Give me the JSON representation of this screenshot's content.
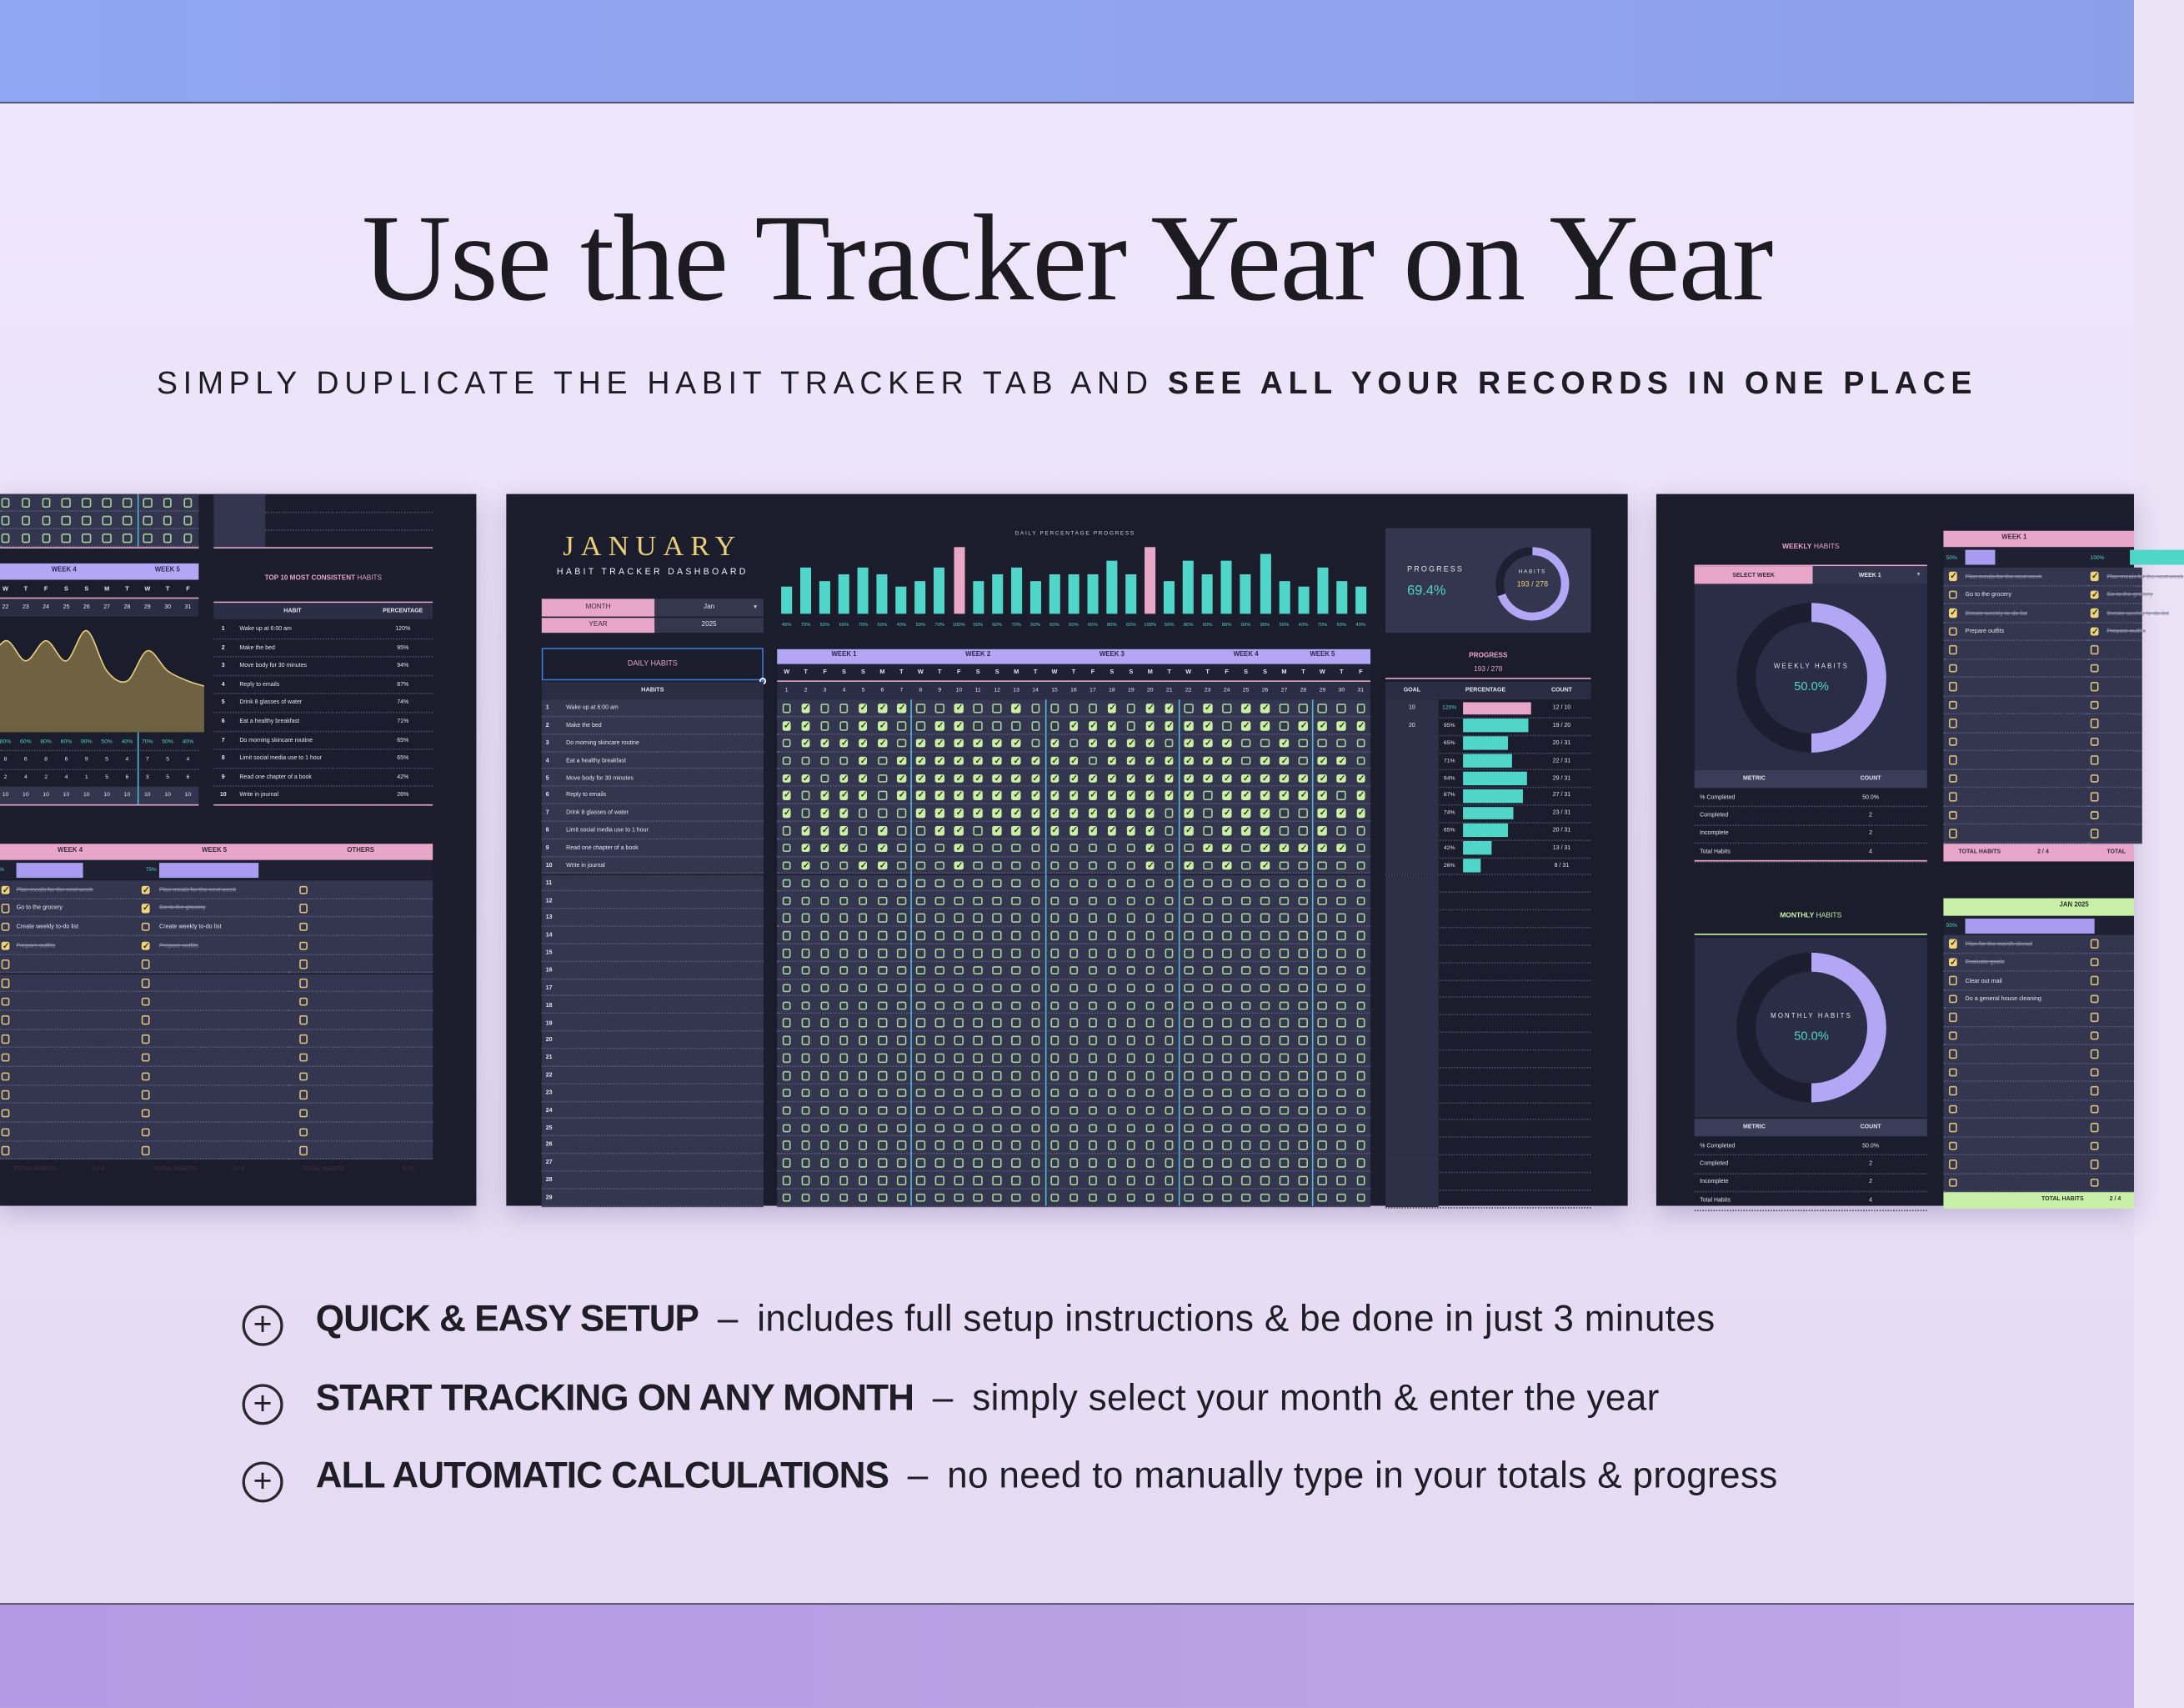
{
  "hero": {
    "title": "Use the Tracker Year on Year",
    "subtitle_regular": "SIMPLY DUPLICATE THE HABIT TRACKER TAB AND",
    "subtitle_bold": "SEE ALL YOUR RECORDS IN ONE PLACE"
  },
  "features": [
    {
      "icon": "plus-circle-icon",
      "icon_glyph": "+",
      "title": "QUICK & EASY SETUP",
      "separator": "–",
      "desc": "includes full setup instructions & be done in just 3 minutes"
    },
    {
      "icon": "plus-circle-icon",
      "icon_glyph": "+",
      "title": "START TRACKING ON ANY MONTH",
      "separator": "–",
      "desc": "simply select your month & enter the year"
    },
    {
      "icon": "plus-circle-icon",
      "icon_glyph": "+",
      "title": "ALL AUTOMATIC CALCULATIONS",
      "separator": "–",
      "desc": "no need to manually type in your totals & progress"
    }
  ],
  "colors": {
    "panel_bg": "#1b1c2c",
    "row_bg": "#34364f",
    "lavender": "#b3a6f5",
    "pink": "#e8a6c8",
    "teal": "#4fd6c8",
    "gold": "#e9cf7b",
    "green_header": "#c8f0a8",
    "check_green": "#c9efa4",
    "check_gold": "#f0d47a"
  },
  "dashboard": {
    "month_title": "JANUARY",
    "subtitle": "HABIT TRACKER DASHBOARD",
    "month_label": "MONTH",
    "month_value": "Jan",
    "year_label": "YEAR",
    "year_value": "2025",
    "daily_habits_label": "DAILY HABITS",
    "habits_header": "HABITS",
    "chart_title": "DAILY PERCENTAGE PROGRESS",
    "daily_percent": [
      40,
      70,
      50,
      60,
      70,
      60,
      40,
      50,
      70,
      100,
      50,
      60,
      70,
      50,
      60,
      60,
      60,
      80,
      60,
      100,
      50,
      80,
      60,
      80,
      60,
      90,
      50,
      40,
      70,
      50,
      40
    ],
    "daily_percent_labels": [
      "40%",
      "70%",
      "50%",
      "60%",
      "70%",
      "60%",
      "40%",
      "50%",
      "70%",
      "100%",
      "50%",
      "60%",
      "70%",
      "50%",
      "60%",
      "60%",
      "60%",
      "80%",
      "60%",
      "100%",
      "50%",
      "80%",
      "60%",
      "80%",
      "60%",
      "90%",
      "50%",
      "40%",
      "70%",
      "50%",
      "40%"
    ],
    "weeks": [
      "WEEK 1",
      "WEEK 2",
      "WEEK 3",
      "WEEK 4",
      "WEEK 5"
    ],
    "day_letters": [
      "W",
      "T",
      "F",
      "S",
      "S",
      "M",
      "T",
      "W",
      "T",
      "F",
      "S",
      "S",
      "M",
      "T",
      "W",
      "T",
      "F",
      "S",
      "S",
      "M",
      "T",
      "W",
      "T",
      "F",
      "S",
      "S",
      "M",
      "T",
      "W",
      "T",
      "F"
    ],
    "days": [
      "1",
      "2",
      "3",
      "4",
      "5",
      "6",
      "7",
      "8",
      "9",
      "10",
      "11",
      "12",
      "13",
      "14",
      "15",
      "16",
      "17",
      "18",
      "19",
      "20",
      "21",
      "22",
      "23",
      "24",
      "25",
      "26",
      "27",
      "28",
      "29",
      "30",
      "31"
    ],
    "habits": [
      {
        "num": "1",
        "name": "Wake up at 6:00 am",
        "checks": "0100111001001000010110101100000",
        "goal": "10",
        "percent": "120%",
        "percent_value": 120,
        "count": "12 / 10"
      },
      {
        "num": "2",
        "name": "Make the bed",
        "checks": "1100110011000001110111101101111",
        "goal": "20",
        "percent": "95%",
        "percent_value": 95,
        "count": "19 / 20"
      },
      {
        "num": "3",
        "name": "Do morning skincare routine",
        "checks": "0111110111111010111101110010000",
        "goal": "",
        "percent": "65%",
        "percent_value": 65,
        "count": "20 / 31"
      },
      {
        "num": "4",
        "name": "Eat a healthy breakfast",
        "checks": "0000101111111111011111110110110",
        "goal": "",
        "percent": "71%",
        "percent_value": 71,
        "count": "22 / 31"
      },
      {
        "num": "5",
        "name": "Move body for 30 minutes",
        "checks": "1101101111111111111111111111111",
        "goal": "",
        "percent": "94%",
        "percent_value": 94,
        "count": "29 / 31"
      },
      {
        "num": "6",
        "name": "Reply to emails",
        "checks": "1011101111111111111111011111101",
        "goal": "",
        "percent": "87%",
        "percent_value": 87,
        "count": "27 / 31"
      },
      {
        "num": "7",
        "name": "Drink 8 glasses of water",
        "checks": "1011000111111111111101011100111",
        "goal": "",
        "percent": "74%",
        "percent_value": 74,
        "count": "23 / 31"
      },
      {
        "num": "8",
        "name": "Limit social media use to 1 hour",
        "checks": "0111010011011111111101011100100",
        "goal": "",
        "percent": "65%",
        "percent_value": 65,
        "count": "20 / 31"
      },
      {
        "num": "9",
        "name": "Read one chapter of a book",
        "checks": "0111010001000000000100110111110",
        "goal": "",
        "percent": "42%",
        "percent_value": 42,
        "count": "13 / 31"
      },
      {
        "num": "10",
        "name": "Write in journal",
        "checks": "0100110001000000000101010100000",
        "goal": "",
        "percent": "26%",
        "percent_value": 26,
        "count": "8 / 31"
      },
      {
        "num": "11"
      },
      {
        "num": "12"
      },
      {
        "num": "13"
      },
      {
        "num": "14"
      },
      {
        "num": "15"
      },
      {
        "num": "16"
      },
      {
        "num": "17"
      },
      {
        "num": "18"
      },
      {
        "num": "19"
      },
      {
        "num": "20"
      },
      {
        "num": "21"
      },
      {
        "num": "22"
      },
      {
        "num": "23"
      },
      {
        "num": "24"
      },
      {
        "num": "25"
      },
      {
        "num": "26"
      },
      {
        "num": "27"
      },
      {
        "num": "28"
      },
      {
        "num": "29"
      }
    ],
    "progress_box": {
      "label": "PROGRESS",
      "value": "69.4%",
      "donut_label": "HABITS",
      "donut_value": "193 / 278",
      "fraction": 0.694
    },
    "progress_table": {
      "title": "PROGRESS",
      "subtitle": "193 / 278",
      "headers": [
        "GOAL",
        "PERCENTAGE",
        "COUNT"
      ]
    }
  },
  "left_panel": {
    "weeks": [
      "WEEK 4",
      "WEEK 5"
    ],
    "day_letters": [
      "W",
      "T",
      "F",
      "S",
      "S",
      "M",
      "T",
      "W",
      "T",
      "F"
    ],
    "days": [
      "22",
      "23",
      "24",
      "25",
      "26",
      "27",
      "28",
      "29",
      "30",
      "31"
    ],
    "percent_values": [
      80,
      60,
      80,
      60,
      90,
      50,
      40,
      70,
      50,
      40
    ],
    "percent_labels": [
      "80%",
      "60%",
      "80%",
      "60%",
      "90%",
      "50%",
      "40%",
      "70%",
      "50%",
      "40%"
    ],
    "completed": [
      "8",
      "6",
      "8",
      "6",
      "9",
      "5",
      "4",
      "7",
      "5",
      "4"
    ],
    "incomplete": [
      "2",
      "4",
      "2",
      "4",
      "1",
      "5",
      "6",
      "3",
      "5",
      "6"
    ],
    "totals": [
      "10",
      "10",
      "10",
      "10",
      "10",
      "10",
      "10",
      "10",
      "10",
      "10"
    ],
    "top10": {
      "title_bold": "TOP 10 MOST CONSISTENT",
      "title_rest": "HABITS",
      "headers": [
        "HABIT",
        "PERCENTAGE"
      ],
      "rows": [
        {
          "rank": "1",
          "habit": "Wake up at 6:00 am",
          "pct": "120%"
        },
        {
          "rank": "2",
          "habit": "Make the bed",
          "pct": "95%"
        },
        {
          "rank": "3",
          "habit": "Move body for 30 minutes",
          "pct": "94%"
        },
        {
          "rank": "4",
          "habit": "Reply to emails",
          "pct": "87%"
        },
        {
          "rank": "5",
          "habit": "Drink 8 glasses of water",
          "pct": "74%"
        },
        {
          "rank": "6",
          "habit": "Eat a healthy breakfast",
          "pct": "71%"
        },
        {
          "rank": "7",
          "habit": "Do morning skincare routine",
          "pct": "65%"
        },
        {
          "rank": "8",
          "habit": "Limit social media use to 1 hour",
          "pct": "65%"
        },
        {
          "rank": "9",
          "habit": "Read one chapter of a book",
          "pct": "42%"
        },
        {
          "rank": "10",
          "habit": "Write in journal",
          "pct": "26%"
        }
      ]
    },
    "weekly_columns": [
      {
        "header": "WEEK 4",
        "pct": "50%",
        "fraction": 0.5,
        "total_label": "TOTAL HABITS",
        "total": "2 / 4",
        "items": [
          {
            "text": "Plan meals for the next week",
            "done": true
          },
          {
            "text": "Go to the grocery",
            "done": false
          },
          {
            "text": "Create weekly to-do list",
            "done": false
          },
          {
            "text": "Prepare outfits",
            "done": true
          }
        ]
      },
      {
        "header": "WEEK 5",
        "pct": "75%",
        "fraction": 0.75,
        "total_label": "TOTAL HABITS",
        "total": "3 / 4",
        "items": [
          {
            "text": "Plan meals for the next week",
            "done": true
          },
          {
            "text": "Go to the grocery",
            "done": true
          },
          {
            "text": "Create weekly to-do list",
            "done": false
          },
          {
            "text": "Prepare outfits",
            "done": true
          }
        ]
      },
      {
        "header": "OTHERS",
        "pct": "",
        "fraction": 0,
        "total_label": "TOTAL HABITS",
        "total": "0 / 0",
        "items": []
      }
    ]
  },
  "right_panel": {
    "weekly": {
      "title_bold": "WEEKLY",
      "title_rest": "HABITS",
      "select_label": "SELECT WEEK",
      "select_value": "WEEK 1",
      "donut_label": "WEEKLY HABITS",
      "donut_value": "50.0%",
      "fraction": 0.5,
      "metric_headers": [
        "METRIC",
        "COUNT"
      ],
      "metrics": [
        {
          "k": "% Completed",
          "v": "50.0%"
        },
        {
          "k": "Completed",
          "v": "2"
        },
        {
          "k": "Incomplete",
          "v": "2"
        },
        {
          "k": "Total Habits",
          "v": "4"
        }
      ]
    },
    "monthly": {
      "title_bold": "MONTHLY",
      "title_rest": "HABITS",
      "donut_label": "MONTHLY HABITS",
      "donut_value": "50.0%",
      "fraction": 0.5,
      "metric_headers": [
        "METRIC",
        "COUNT"
      ],
      "metrics": [
        {
          "k": "% Completed",
          "v": "50.0%"
        },
        {
          "k": "Completed",
          "v": "2"
        },
        {
          "k": "Incomplete",
          "v": "2"
        },
        {
          "k": "Total Habits",
          "v": "4"
        }
      ]
    },
    "week_table": {
      "header": "WEEK 1",
      "col1": {
        "pct": "50%",
        "fraction": 0.5,
        "total_label": "TOTAL HABITS",
        "total": "2 / 4",
        "items": [
          {
            "text": "Plan meals for the next week",
            "done": true
          },
          {
            "text": "Go to the grocery",
            "done": false
          },
          {
            "text": "Create weekly to-do list",
            "done": true
          },
          {
            "text": "Prepare outfits",
            "done": false
          }
        ]
      },
      "col2": {
        "pct": "100%",
        "fraction": 1.0,
        "total_label": "TOTAL",
        "items": [
          {
            "text": "Plan meals for the next week",
            "done": true
          },
          {
            "text": "Go to the grocery",
            "done": true
          },
          {
            "text": "Create weekly to-do list",
            "done": true
          },
          {
            "text": "Prepare outfits",
            "done": true
          }
        ]
      }
    },
    "month_table": {
      "header": "JAN 2025",
      "pct": "50%",
      "fraction": 0.5,
      "total_label": "TOTAL HABITS",
      "total": "2 / 4",
      "items": [
        {
          "text": "Plan for the month ahead",
          "done": true
        },
        {
          "text": "Evaluate goals",
          "done": true
        },
        {
          "text": "Clear out mail",
          "done": false
        },
        {
          "text": "Do a general house cleaning",
          "done": false
        }
      ]
    }
  }
}
